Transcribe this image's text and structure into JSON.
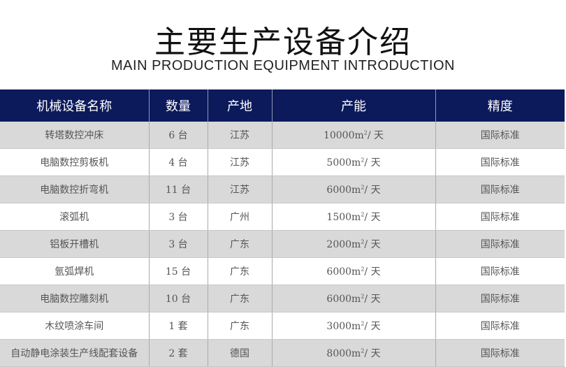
{
  "title": "主要生产设备介绍",
  "subtitle": "MAIN PRODUCTION EQUIPMENT INTRODUCTION",
  "colors": {
    "header_bg": "#0c1a5c",
    "row_alt": "#d9d9d9"
  },
  "columns": [
    "机械设备名称",
    "数量",
    "产地",
    "产能",
    "精度"
  ],
  "rows": [
    {
      "name": "转塔数控冲床",
      "qty": "6 台",
      "origin": "江苏",
      "capacity": "10000",
      "unit": "m",
      "sup": "2",
      "per": "/ 天",
      "precision": "国际标准"
    },
    {
      "name": "电脑数控剪板机",
      "qty": "4 台",
      "origin": "江苏",
      "capacity": "5000",
      "unit": "m",
      "sup": "2",
      "per": "/ 天",
      "precision": "国际标准"
    },
    {
      "name": "电脑数控折弯机",
      "qty": "11 台",
      "origin": "江苏",
      "capacity": "6000",
      "unit": "m",
      "sup": "2",
      "per": "/ 天",
      "precision": "国际标准"
    },
    {
      "name": "滚弧机",
      "qty": "3 台",
      "origin": "广州",
      "capacity": "1500",
      "unit": "m",
      "sup": "2",
      "per": "/ 天",
      "precision": "国际标准"
    },
    {
      "name": "铝板开槽机",
      "qty": "3 台",
      "origin": "广东",
      "capacity": "2000",
      "unit": "m",
      "sup": "2",
      "per": "/ 天",
      "precision": "国际标准"
    },
    {
      "name": "氩弧焊机",
      "qty": "15 台",
      "origin": "广东",
      "capacity": "6000",
      "unit": "m",
      "sup": "2",
      "per": "/ 天",
      "precision": "国际标准"
    },
    {
      "name": "电脑数控雕刻机",
      "qty": "10 台",
      "origin": "广东",
      "capacity": "6000",
      "unit": "m",
      "sup": "2",
      "per": "/ 天",
      "precision": "国际标准"
    },
    {
      "name": "木纹喷涂车间",
      "qty": "1 套",
      "origin": "广东",
      "capacity": "3000",
      "unit": "m",
      "sup": "2",
      "per": "/ 天",
      "precision": "国际标准"
    },
    {
      "name": "自动静电涂装生产线配套设备",
      "qty": "2 套",
      "origin": "德国",
      "capacity": "8000",
      "unit": "m",
      "sup": "2",
      "per": "/ 天",
      "precision": "国际标准"
    }
  ]
}
